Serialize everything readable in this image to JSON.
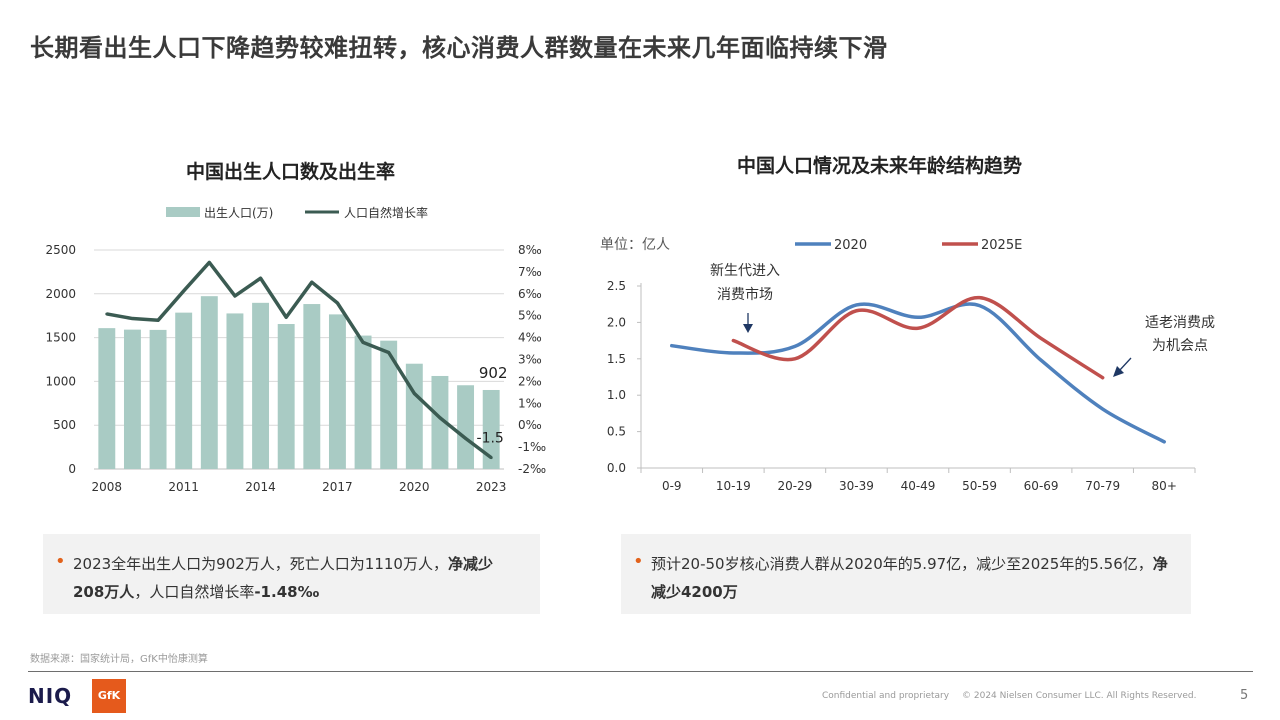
{
  "page": {
    "title": "长期看出生人口下降趋势较难扭转，核心消费人群数量在未来几年面临持续下滑",
    "source": "数据来源：国家统计局，GfK中怡康测算",
    "footer_left": "Confidential and proprietary",
    "footer_right": "© 2024 Nielsen Consumer LLC. All Rights Reserved.",
    "page_number": "5",
    "logo_niq": "NIQ",
    "logo_gfk": "GfK"
  },
  "notes": {
    "left": {
      "part1": "2023全年出生人口为902万人，死亡人口为1110万人，",
      "bold1": "净减少208万人",
      "part2": "，人口自然增长率",
      "bold2": "-1.48‰"
    },
    "right": {
      "part1": "预计20-50岁核心消费人群从2020年的5.97亿，减少至2025年的5.56亿，",
      "bold1": "净减少4200万"
    }
  },
  "colors": {
    "bar": "#a9cbc4",
    "line_dark": "#3b5b52",
    "blue": "#4f81bd",
    "red": "#c0504d",
    "accent": "#e2621b"
  },
  "chart_data": [
    {
      "type": "bar",
      "title": "中国出生人口数及出生率",
      "categories": [
        "2008",
        "2009",
        "2010",
        "2011",
        "2012",
        "2013",
        "2014",
        "2015",
        "2016",
        "2017",
        "2018",
        "2019",
        "2020",
        "2021",
        "2022",
        "2023"
      ],
      "x_tick_labels": [
        "2008",
        "2011",
        "2014",
        "2017",
        "2020",
        "2023"
      ],
      "series": [
        {
          "name": "出生人口(万)",
          "type": "bar",
          "axis": "left",
          "values": [
            1608,
            1591,
            1588,
            1785,
            1973,
            1776,
            1897,
            1655,
            1883,
            1765,
            1523,
            1465,
            1202,
            1062,
            956,
            902
          ]
        },
        {
          "name": "人口自然增长率",
          "type": "line",
          "axis": "right",
          "values": [
            5.08,
            4.87,
            4.79,
            6.13,
            7.43,
            5.9,
            6.71,
            4.93,
            6.53,
            5.58,
            3.78,
            3.32,
            1.45,
            0.34,
            -0.6,
            -1.48
          ]
        }
      ],
      "ylim_left": [
        0,
        2500
      ],
      "yticks_left": [
        "0",
        "500",
        "1000",
        "1500",
        "2000",
        "2500"
      ],
      "ylim_right": [
        -2,
        8
      ],
      "yticks_right": [
        "-2‰",
        "-1‰",
        "0‰",
        "1‰",
        "2‰",
        "3‰",
        "4‰",
        "5‰",
        "6‰",
        "7‰",
        "8‰"
      ],
      "data_labels": {
        "bar_last": "902",
        "line_last": "-1.5"
      },
      "legend": "top"
    },
    {
      "type": "line",
      "title": "中国人口情况及未来年龄结构趋势",
      "unit_label": "单位：亿人",
      "categories": [
        "0-9",
        "10-19",
        "20-29",
        "30-39",
        "40-49",
        "50-59",
        "60-69",
        "70-79",
        "80+"
      ],
      "series": [
        {
          "name": "2020",
          "values": [
            1.68,
            1.58,
            1.67,
            2.24,
            2.07,
            2.23,
            1.48,
            0.81,
            0.36
          ]
        },
        {
          "name": "2025E",
          "values": [
            null,
            1.75,
            1.5,
            2.16,
            1.92,
            2.34,
            1.78,
            1.24,
            null
          ]
        }
      ],
      "ylim": [
        0,
        2.5
      ],
      "yticks": [
        "0.0",
        "0.5",
        "1.0",
        "1.5",
        "2.0",
        "2.5"
      ],
      "annotations": [
        {
          "lines": [
            "新生代进入",
            "消费市场"
          ]
        },
        {
          "lines": [
            "适老消费成",
            "为机会点"
          ]
        }
      ],
      "legend": "top"
    }
  ]
}
